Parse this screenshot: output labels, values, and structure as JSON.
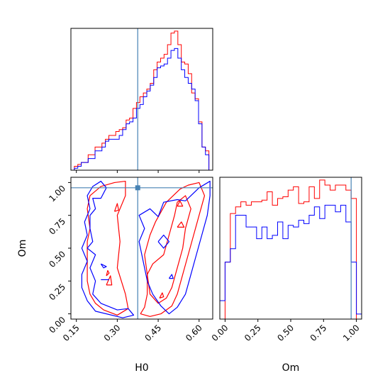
{
  "chart_data": {
    "type": "corner",
    "parameters": [
      "H0",
      "Om"
    ],
    "truth": {
      "H0": 0.375,
      "Om": 0.96
    },
    "colors": {
      "run_a": "#ff0000",
      "run_b": "#0000ff",
      "truth": "#4682b4"
    },
    "axes": {
      "H0": {
        "label": "H0",
        "range": [
          0.13,
          0.65
        ],
        "ticks": [
          0.15,
          0.3,
          0.45,
          0.6
        ],
        "tick_labels": [
          "0.15",
          "0.30",
          "0.45",
          "0.60"
        ]
      },
      "Om": {
        "label": "Om",
        "range": [
          -0.04,
          1.04
        ],
        "ticks": [
          0.0,
          0.25,
          0.5,
          0.75,
          1.0
        ],
        "tick_labels": [
          "0.00",
          "0.25",
          "0.50",
          "0.75",
          "1.00"
        ]
      }
    },
    "hist_H0": {
      "bin_edges": [
        0.13,
        0.1426,
        0.1553,
        0.1679,
        0.1806,
        0.1932,
        0.2059,
        0.2185,
        0.2312,
        0.2438,
        0.2565,
        0.2691,
        0.2818,
        0.2944,
        0.3071,
        0.3197,
        0.3324,
        0.345,
        0.3577,
        0.3703,
        0.383,
        0.3956,
        0.4083,
        0.4209,
        0.4336,
        0.4462,
        0.4589,
        0.4715,
        0.4842,
        0.4968,
        0.5095,
        0.5221,
        0.5348,
        0.5474,
        0.5601,
        0.5727,
        0.5854,
        0.598,
        0.6107,
        0.6233,
        0.636,
        0.65
      ],
      "series": [
        {
          "color_key": "run_a",
          "counts": [
            0,
            2,
            3,
            4,
            4,
            8,
            8,
            12,
            12,
            14,
            16,
            18,
            18,
            20,
            21,
            22,
            26,
            27,
            32,
            35,
            38,
            40,
            42,
            45,
            52,
            56,
            58,
            60,
            65,
            71,
            72,
            65,
            56,
            55,
            50,
            40,
            37,
            25,
            12,
            10,
            0
          ]
        },
        {
          "color_key": "run_b",
          "counts": [
            0,
            1,
            2,
            4,
            4,
            6,
            6,
            10,
            10,
            12,
            15,
            16,
            16,
            16,
            18,
            21,
            24,
            25,
            27,
            32,
            34,
            38,
            41,
            44,
            48,
            53,
            54,
            55,
            58,
            62,
            63,
            58,
            52,
            48,
            45,
            42,
            36,
            24,
            12,
            8,
            0
          ]
        }
      ]
    },
    "hist_Om": {
      "bin_edges": [
        -0.04,
        0.0,
        0.04,
        0.08,
        0.12,
        0.16,
        0.2,
        0.24,
        0.28,
        0.32,
        0.36,
        0.4,
        0.44,
        0.48,
        0.52,
        0.56,
        0.6,
        0.64,
        0.68,
        0.72,
        0.76,
        0.8,
        0.84,
        0.88,
        0.92,
        0.96,
        1.0,
        1.04
      ],
      "series": [
        {
          "color_key": "run_a",
          "counts": [
            0,
            34,
            63,
            67,
            70,
            68,
            70,
            70,
            71,
            76,
            68,
            72,
            73,
            77,
            79,
            69,
            70,
            79,
            72,
            83,
            80,
            77,
            80,
            80,
            77,
            72,
            0
          ]
        },
        {
          "color_key": "run_b",
          "counts": [
            11,
            34,
            42,
            62,
            62,
            55,
            55,
            48,
            55,
            48,
            50,
            58,
            48,
            56,
            55,
            59,
            57,
            62,
            67,
            60,
            68,
            68,
            64,
            68,
            58,
            34,
            3
          ]
        }
      ]
    },
    "contours_H0_Om": [
      {
        "color_key": "run_a",
        "paths": [
          [
            [
              0.24,
              0.97
            ],
            [
              0.29,
              1.0
            ],
            [
              0.33,
              1.01
            ],
            [
              0.33,
              0.9
            ],
            [
              0.3,
              0.75
            ],
            [
              0.31,
              0.55
            ],
            [
              0.3,
              0.35
            ],
            [
              0.33,
              0.15
            ],
            [
              0.34,
              0.04
            ],
            [
              0.3,
              -0.01
            ],
            [
              0.25,
              0.03
            ],
            [
              0.22,
              0.08
            ],
            [
              0.2,
              0.15
            ],
            [
              0.19,
              0.25
            ],
            [
              0.19,
              0.4
            ],
            [
              0.19,
              0.55
            ],
            [
              0.2,
              0.65
            ],
            [
              0.19,
              0.8
            ],
            [
              0.2,
              0.9
            ],
            [
              0.24,
              0.97
            ]
          ],
          [
            [
              0.385,
              0.0
            ],
            [
              0.4,
              0.05
            ],
            [
              0.41,
              0.15
            ],
            [
              0.41,
              0.3
            ],
            [
              0.4,
              0.45
            ],
            [
              0.42,
              0.6
            ],
            [
              0.44,
              0.7
            ],
            [
              0.48,
              0.85
            ],
            [
              0.53,
              0.95
            ],
            [
              0.56,
              0.98
            ],
            [
              0.6,
              1.0
            ],
            [
              0.62,
              0.9
            ],
            [
              0.6,
              0.75
            ],
            [
              0.58,
              0.6
            ],
            [
              0.56,
              0.45
            ],
            [
              0.54,
              0.3
            ],
            [
              0.52,
              0.15
            ],
            [
              0.5,
              0.06
            ],
            [
              0.46,
              0.0
            ],
            [
              0.42,
              -0.02
            ],
            [
              0.385,
              0.0
            ]
          ],
          [
            [
              0.41,
              0.3
            ],
            [
              0.43,
              0.38
            ],
            [
              0.47,
              0.45
            ],
            [
              0.49,
              0.6
            ],
            [
              0.51,
              0.75
            ],
            [
              0.52,
              0.85
            ],
            [
              0.55,
              0.9
            ],
            [
              0.57,
              0.8
            ],
            [
              0.55,
              0.65
            ],
            [
              0.54,
              0.5
            ],
            [
              0.52,
              0.35
            ],
            [
              0.5,
              0.2
            ],
            [
              0.48,
              0.12
            ],
            [
              0.45,
              0.08
            ],
            [
              0.42,
              0.15
            ],
            [
              0.41,
              0.3
            ]
          ],
          [
            [
              0.26,
              0.22
            ],
            [
              0.275,
              0.29
            ],
            [
              0.28,
              0.22
            ],
            [
              0.26,
              0.22
            ]
          ],
          [
            [
              0.26,
              0.29
            ],
            [
              0.27,
              0.31
            ],
            [
              0.265,
              0.33
            ],
            [
              0.26,
              0.29
            ]
          ],
          [
            [
              0.29,
              0.78
            ],
            [
              0.3,
              0.84
            ],
            [
              0.305,
              0.79
            ],
            [
              0.29,
              0.78
            ]
          ],
          [
            [
              0.52,
              0.82
            ],
            [
              0.53,
              0.86
            ],
            [
              0.54,
              0.82
            ],
            [
              0.52,
              0.82
            ]
          ],
          [
            [
              0.52,
              0.66
            ],
            [
              0.535,
              0.7
            ],
            [
              0.545,
              0.66
            ],
            [
              0.52,
              0.66
            ]
          ],
          [
            [
              0.455,
              0.12
            ],
            [
              0.465,
              0.16
            ],
            [
              0.47,
              0.13
            ],
            [
              0.455,
              0.12
            ]
          ]
        ]
      },
      {
        "color_key": "run_b",
        "paths": [
          [
            [
              0.21,
              0.97
            ],
            [
              0.24,
              1.01
            ],
            [
              0.26,
              0.96
            ],
            [
              0.24,
              0.88
            ],
            [
              0.21,
              0.88
            ],
            [
              0.22,
              0.8
            ],
            [
              0.2,
              0.75
            ],
            [
              0.2,
              0.65
            ],
            [
              0.21,
              0.55
            ],
            [
              0.19,
              0.5
            ],
            [
              0.22,
              0.45
            ],
            [
              0.2,
              0.35
            ],
            [
              0.22,
              0.25
            ],
            [
              0.21,
              0.15
            ],
            [
              0.24,
              0.08
            ],
            [
              0.3,
              0.03
            ],
            [
              0.34,
              0.04
            ],
            [
              0.36,
              -0.01
            ],
            [
              0.32,
              -0.03
            ],
            [
              0.22,
              0.02
            ],
            [
              0.19,
              0.1
            ],
            [
              0.17,
              0.2
            ],
            [
              0.17,
              0.3
            ],
            [
              0.19,
              0.4
            ],
            [
              0.17,
              0.5
            ],
            [
              0.19,
              0.6
            ],
            [
              0.18,
              0.7
            ],
            [
              0.2,
              0.8
            ],
            [
              0.19,
              0.9
            ],
            [
              0.21,
              0.97
            ]
          ],
          [
            [
              0.55,
              0.86
            ],
            [
              0.6,
              0.96
            ],
            [
              0.64,
              1.01
            ],
            [
              0.64,
              0.9
            ],
            [
              0.63,
              0.75
            ],
            [
              0.61,
              0.6
            ],
            [
              0.59,
              0.45
            ],
            [
              0.57,
              0.3
            ],
            [
              0.55,
              0.15
            ],
            [
              0.52,
              0.05
            ],
            [
              0.49,
              0.0
            ],
            [
              0.46,
              0.06
            ],
            [
              0.43,
              0.15
            ],
            [
              0.41,
              0.25
            ],
            [
              0.4,
              0.35
            ],
            [
              0.39,
              0.45
            ],
            [
              0.38,
              0.55
            ],
            [
              0.4,
              0.65
            ],
            [
              0.38,
              0.75
            ],
            [
              0.42,
              0.8
            ],
            [
              0.45,
              0.74
            ],
            [
              0.47,
              0.85
            ],
            [
              0.52,
              0.87
            ],
            [
              0.55,
              0.86
            ]
          ],
          [
            [
              0.45,
              0.55
            ],
            [
              0.47,
              0.6
            ],
            [
              0.49,
              0.55
            ],
            [
              0.47,
              0.5
            ],
            [
              0.45,
              0.55
            ]
          ],
          [
            [
              0.24,
              0.38
            ],
            [
              0.26,
              0.36
            ],
            [
              0.25,
              0.35
            ],
            [
              0.24,
              0.38
            ]
          ],
          [
            [
              0.24,
              0.26
            ],
            [
              0.27,
              0.26
            ]
          ],
          [
            [
              0.49,
              0.27
            ],
            [
              0.5,
              0.3
            ],
            [
              0.505,
              0.27
            ],
            [
              0.49,
              0.27
            ]
          ]
        ]
      }
    ]
  }
}
